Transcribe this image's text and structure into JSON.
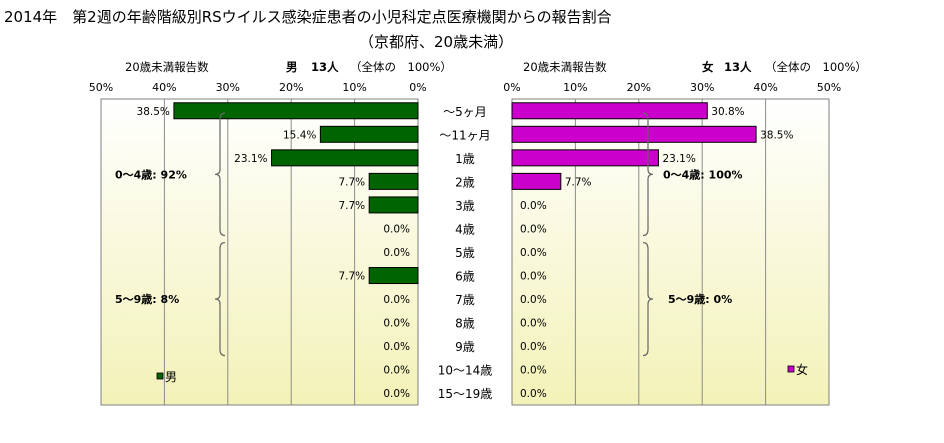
{
  "title": {
    "line1": "2014年　第2週の年齢階級別RSウイルス感染症患者の小児科定点医療機関からの報告割合",
    "line2": "（京都府、20歳未満）"
  },
  "chart_data": [
    {
      "type": "bar",
      "orientation": "horizontal",
      "side": "left",
      "panel_label": "20歳未満報告数",
      "sex_label": "男",
      "count_label": "13人",
      "total_label": "（全体の　100%）",
      "legend_label": "男",
      "color": "#006400",
      "xlim": [
        0,
        50
      ],
      "x_ticks": [
        "50%",
        "40%",
        "30%",
        "20%",
        "10%",
        "0%"
      ],
      "categories": [
        "～5ヶ月",
        "～11ヶ月",
        "1歳",
        "2歳",
        "3歳",
        "4歳",
        "5歳",
        "6歳",
        "7歳",
        "8歳",
        "9歳",
        "10～14歳",
        "15～19歳"
      ],
      "values": [
        38.5,
        15.4,
        23.1,
        7.7,
        7.7,
        0.0,
        0.0,
        7.7,
        0.0,
        0.0,
        0.0,
        0.0,
        0.0
      ],
      "value_labels": [
        "38.5%",
        "15.4%",
        "23.1%",
        "7.7%",
        "7.7%",
        "0.0%",
        "0.0%",
        "7.7%",
        "0.0%",
        "0.0%",
        "0.0%",
        "0.0%",
        "0.0%"
      ],
      "group_annotations": [
        "0～4歳:  92%",
        "5～9歳:  8%"
      ]
    },
    {
      "type": "bar",
      "orientation": "horizontal",
      "side": "right",
      "panel_label": "20歳未満報告数",
      "sex_label": "女",
      "count_label": "13人",
      "total_label": "（全体の　100%）",
      "legend_label": "女",
      "color": "#cc00cc",
      "xlim": [
        0,
        50
      ],
      "x_ticks": [
        "0%",
        "10%",
        "20%",
        "30%",
        "40%",
        "50%"
      ],
      "categories": [
        "～5ヶ月",
        "～11ヶ月",
        "1歳",
        "2歳",
        "3歳",
        "4歳",
        "5歳",
        "6歳",
        "7歳",
        "8歳",
        "9歳",
        "10～14歳",
        "15～19歳"
      ],
      "values": [
        30.8,
        38.5,
        23.1,
        7.7,
        0.0,
        0.0,
        0.0,
        0.0,
        0.0,
        0.0,
        0.0,
        0.0,
        0.0
      ],
      "value_labels": [
        "30.8%",
        "38.5%",
        "23.1%",
        "7.7%",
        "0.0%",
        "0.0%",
        "0.0%",
        "0.0%",
        "0.0%",
        "0.0%",
        "0.0%",
        "0.0%",
        "0.0%"
      ],
      "group_annotations": [
        "0～4歳: 100%",
        "5～9歳:  0%"
      ]
    }
  ]
}
